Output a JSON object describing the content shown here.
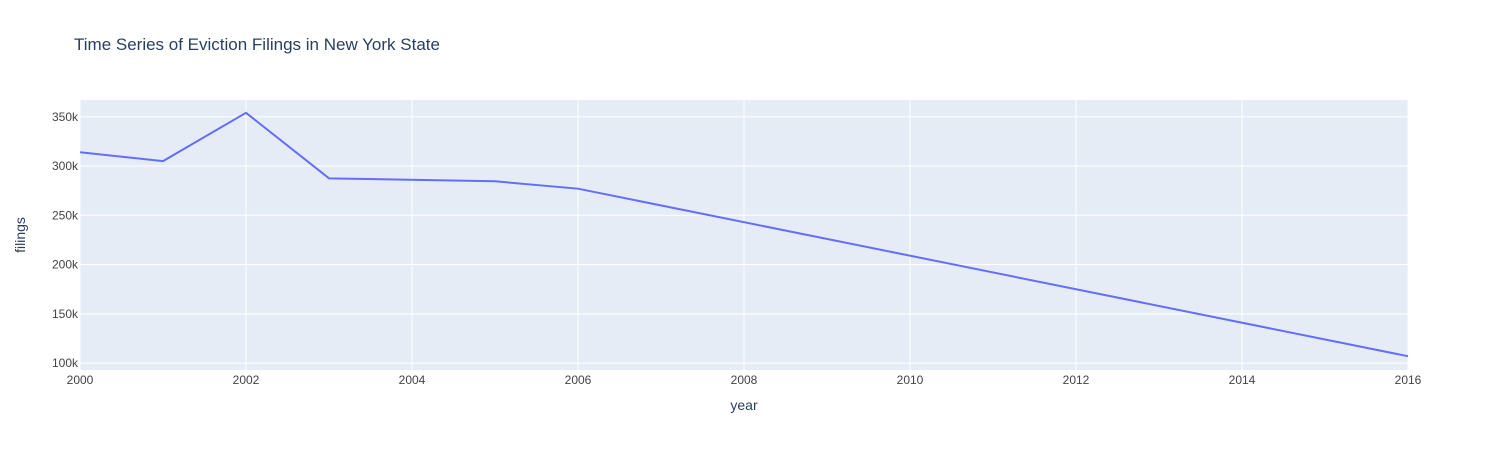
{
  "chart_data": {
    "type": "line",
    "title": "Time Series of Eviction Filings in New York State",
    "xlabel": "year",
    "ylabel": "filings",
    "xlim": [
      2000,
      2016
    ],
    "ylim": [
      93000,
      367000
    ],
    "x_ticks": [
      2000,
      2002,
      2004,
      2006,
      2008,
      2010,
      2012,
      2014,
      2016
    ],
    "x_tick_labels": [
      "2000",
      "2002",
      "2004",
      "2006",
      "2008",
      "2010",
      "2012",
      "2014",
      "2016"
    ],
    "y_ticks": [
      100000,
      150000,
      200000,
      250000,
      300000,
      350000
    ],
    "y_tick_labels": [
      "100k",
      "150k",
      "200k",
      "250k",
      "300k",
      "350k"
    ],
    "grid": true,
    "series": [
      {
        "color": "#636efa",
        "x": [
          2000,
          2001,
          2002,
          2003,
          2005,
          2006,
          2016
        ],
        "y": [
          314000,
          305000,
          354000,
          287500,
          284500,
          277000,
          107000
        ]
      }
    ]
  },
  "colors": {
    "plot_background": "#e5ecf6",
    "grid": "#ffffff",
    "line": "#636efa",
    "text": "#2a3f5f",
    "tick_text": "#444444"
  }
}
